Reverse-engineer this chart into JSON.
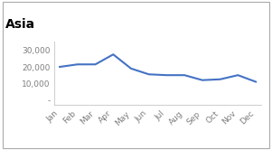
{
  "title": "Asia",
  "months": [
    "Jan",
    "Feb",
    "Mar",
    "Apr",
    "May",
    "Jun",
    "Jul",
    "Aug",
    "Sep",
    "Oct",
    "Nov",
    "Dec"
  ],
  "values": [
    20000,
    21500,
    21500,
    27500,
    19000,
    15500,
    15000,
    15000,
    12000,
    12500,
    15000,
    11000
  ],
  "line_color": "#4472C4",
  "line_width": 1.5,
  "background_color": "#ffffff",
  "title_fontsize": 10,
  "tick_fontsize": 6.5,
  "tick_color": "#7F7F7F",
  "ylim": [
    -3000,
    35000
  ],
  "yticks": [
    0,
    10000,
    20000,
    30000
  ],
  "ytick_labels": [
    "-",
    "10,000",
    "20,000",
    "30,000"
  ],
  "border_color": "#AAAAAA",
  "spine_color": "#D0D0D0"
}
